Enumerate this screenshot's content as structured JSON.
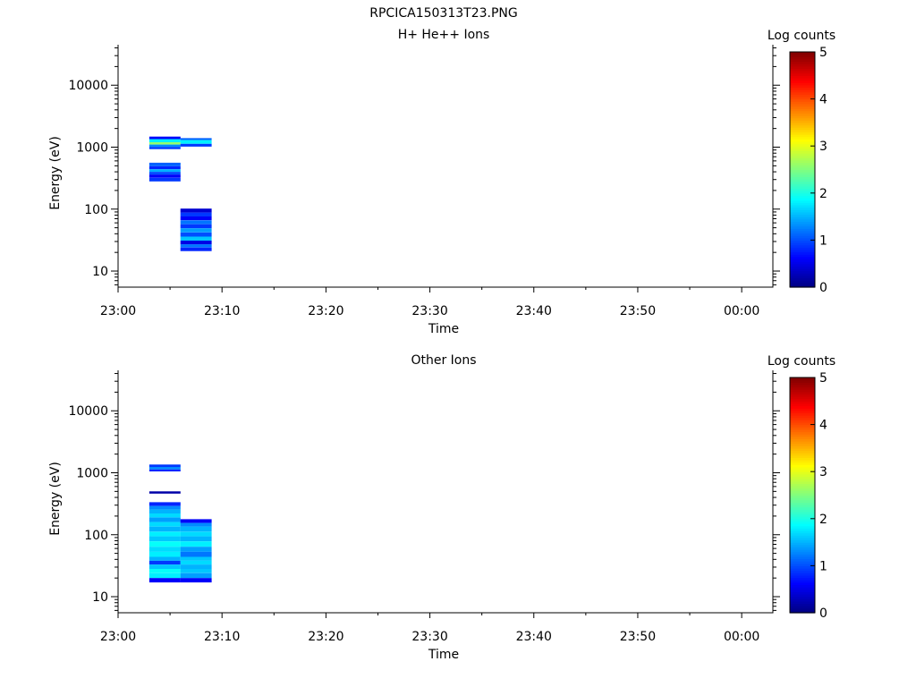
{
  "figure_title": "RPCICA150313T23.PNG",
  "chart_data": [
    {
      "type": "heatmap",
      "title": "H+ He++ Ions",
      "xlabel": "Time",
      "ylabel": "Energy (eV)",
      "xscale": "time",
      "xlim": [
        "23:00",
        "00:03"
      ],
      "xticks": [
        "23:00",
        "23:10",
        "23:20",
        "23:30",
        "23:40",
        "23:50",
        "00:00"
      ],
      "yscale": "log",
      "ylim": [
        5.5,
        45000
      ],
      "yticks": [
        10,
        100,
        1000,
        10000
      ],
      "colorbar": {
        "label": "Log counts",
        "range": [
          0,
          5
        ],
        "ticks": [
          "0",
          "1",
          "2",
          "3",
          "4",
          "5"
        ]
      },
      "time_bins": [
        {
          "start": "23:03",
          "end": "23:06",
          "cells": [
            {
              "e_lo": 1350,
              "e_hi": 1480,
              "log_counts": 0.6
            },
            {
              "e_lo": 1200,
              "e_hi": 1350,
              "log_counts": 1.8
            },
            {
              "e_lo": 1100,
              "e_hi": 1200,
              "log_counts": 2.6
            },
            {
              "e_lo": 1010,
              "e_hi": 1100,
              "log_counts": 1.3
            },
            {
              "e_lo": 930,
              "e_hi": 1010,
              "log_counts": 0.9
            },
            {
              "e_lo": 490,
              "e_hi": 560,
              "log_counts": 1.1
            },
            {
              "e_lo": 440,
              "e_hi": 490,
              "log_counts": 0.8
            },
            {
              "e_lo": 400,
              "e_hi": 440,
              "log_counts": 1.5
            },
            {
              "e_lo": 360,
              "e_hi": 400,
              "log_counts": 1.0
            },
            {
              "e_lo": 320,
              "e_hi": 360,
              "log_counts": 0.6
            },
            {
              "e_lo": 280,
              "e_hi": 320,
              "log_counts": 0.9
            }
          ]
        },
        {
          "start": "23:06",
          "end": "23:09",
          "cells": [
            {
              "e_lo": 1300,
              "e_hi": 1400,
              "log_counts": 1.1
            },
            {
              "e_lo": 1130,
              "e_hi": 1300,
              "log_counts": 1.8
            },
            {
              "e_lo": 1020,
              "e_hi": 1130,
              "log_counts": 0.9
            },
            {
              "e_lo": 88,
              "e_hi": 102,
              "log_counts": 0.4
            },
            {
              "e_lo": 76,
              "e_hi": 88,
              "log_counts": 0.9
            },
            {
              "e_lo": 66,
              "e_hi": 76,
              "log_counts": 0.6
            },
            {
              "e_lo": 57,
              "e_hi": 66,
              "log_counts": 1.2
            },
            {
              "e_lo": 49,
              "e_hi": 57,
              "log_counts": 0.9
            },
            {
              "e_lo": 42,
              "e_hi": 49,
              "log_counts": 1.4
            },
            {
              "e_lo": 36,
              "e_hi": 42,
              "log_counts": 1.0
            },
            {
              "e_lo": 31,
              "e_hi": 36,
              "log_counts": 1.6
            },
            {
              "e_lo": 27,
              "e_hi": 31,
              "log_counts": 0.5
            },
            {
              "e_lo": 24,
              "e_hi": 27,
              "log_counts": 1.2
            },
            {
              "e_lo": 21,
              "e_hi": 24,
              "log_counts": 0.8
            }
          ]
        }
      ]
    },
    {
      "type": "heatmap",
      "title": "Other Ions",
      "xlabel": "Time",
      "ylabel": "Energy (eV)",
      "xscale": "time",
      "xlim": [
        "23:00",
        "00:03"
      ],
      "xticks": [
        "23:00",
        "23:10",
        "23:20",
        "23:30",
        "23:40",
        "23:50",
        "00:00"
      ],
      "yscale": "log",
      "ylim": [
        5.5,
        45000
      ],
      "yticks": [
        10,
        100,
        1000,
        10000
      ],
      "colorbar": {
        "label": "Log counts",
        "range": [
          0,
          5
        ],
        "ticks": [
          "0",
          "1",
          "2",
          "3",
          "4",
          "5"
        ]
      },
      "time_bins": [
        {
          "start": "23:03",
          "end": "23:06",
          "cells": [
            {
              "e_lo": 1240,
              "e_hi": 1360,
              "log_counts": 0.9
            },
            {
              "e_lo": 1130,
              "e_hi": 1240,
              "log_counts": 1.3
            },
            {
              "e_lo": 1050,
              "e_hi": 1130,
              "log_counts": 0.8
            },
            {
              "e_lo": 460,
              "e_hi": 500,
              "log_counts": 0.2
            },
            {
              "e_lo": 290,
              "e_hi": 335,
              "log_counts": 0.8
            },
            {
              "e_lo": 255,
              "e_hi": 290,
              "log_counts": 1.3
            },
            {
              "e_lo": 220,
              "e_hi": 255,
              "log_counts": 1.5
            },
            {
              "e_lo": 190,
              "e_hi": 220,
              "log_counts": 1.7
            },
            {
              "e_lo": 160,
              "e_hi": 190,
              "log_counts": 1.4
            },
            {
              "e_lo": 135,
              "e_hi": 160,
              "log_counts": 1.7
            },
            {
              "e_lo": 112,
              "e_hi": 135,
              "log_counts": 1.5
            },
            {
              "e_lo": 94,
              "e_hi": 112,
              "log_counts": 1.8
            },
            {
              "e_lo": 78,
              "e_hi": 94,
              "log_counts": 1.6
            },
            {
              "e_lo": 64,
              "e_hi": 78,
              "log_counts": 1.9
            },
            {
              "e_lo": 53,
              "e_hi": 64,
              "log_counts": 1.7
            },
            {
              "e_lo": 44,
              "e_hi": 53,
              "log_counts": 1.8
            },
            {
              "e_lo": 38,
              "e_hi": 44,
              "log_counts": 1.5
            },
            {
              "e_lo": 33,
              "e_hi": 38,
              "log_counts": 0.9
            },
            {
              "e_lo": 28,
              "e_hi": 33,
              "log_counts": 1.6
            },
            {
              "e_lo": 24,
              "e_hi": 28,
              "log_counts": 1.9
            },
            {
              "e_lo": 20,
              "e_hi": 24,
              "log_counts": 1.8
            },
            {
              "e_lo": 17,
              "e_hi": 20,
              "log_counts": 0.6
            }
          ]
        },
        {
          "start": "23:06",
          "end": "23:09",
          "cells": [
            {
              "e_lo": 155,
              "e_hi": 178,
              "log_counts": 0.6
            },
            {
              "e_lo": 135,
              "e_hi": 155,
              "log_counts": 1.3
            },
            {
              "e_lo": 112,
              "e_hi": 135,
              "log_counts": 1.5
            },
            {
              "e_lo": 94,
              "e_hi": 112,
              "log_counts": 1.7
            },
            {
              "e_lo": 78,
              "e_hi": 94,
              "log_counts": 1.5
            },
            {
              "e_lo": 64,
              "e_hi": 78,
              "log_counts": 1.8
            },
            {
              "e_lo": 53,
              "e_hi": 64,
              "log_counts": 1.4
            },
            {
              "e_lo": 44,
              "e_hi": 53,
              "log_counts": 1.2
            },
            {
              "e_lo": 38,
              "e_hi": 44,
              "log_counts": 1.6
            },
            {
              "e_lo": 33,
              "e_hi": 38,
              "log_counts": 1.7
            },
            {
              "e_lo": 28,
              "e_hi": 33,
              "log_counts": 1.5
            },
            {
              "e_lo": 24,
              "e_hi": 28,
              "log_counts": 1.6
            },
            {
              "e_lo": 20,
              "e_hi": 24,
              "log_counts": 1.4
            },
            {
              "e_lo": 17,
              "e_hi": 20,
              "log_counts": 0.6
            }
          ]
        }
      ]
    }
  ]
}
